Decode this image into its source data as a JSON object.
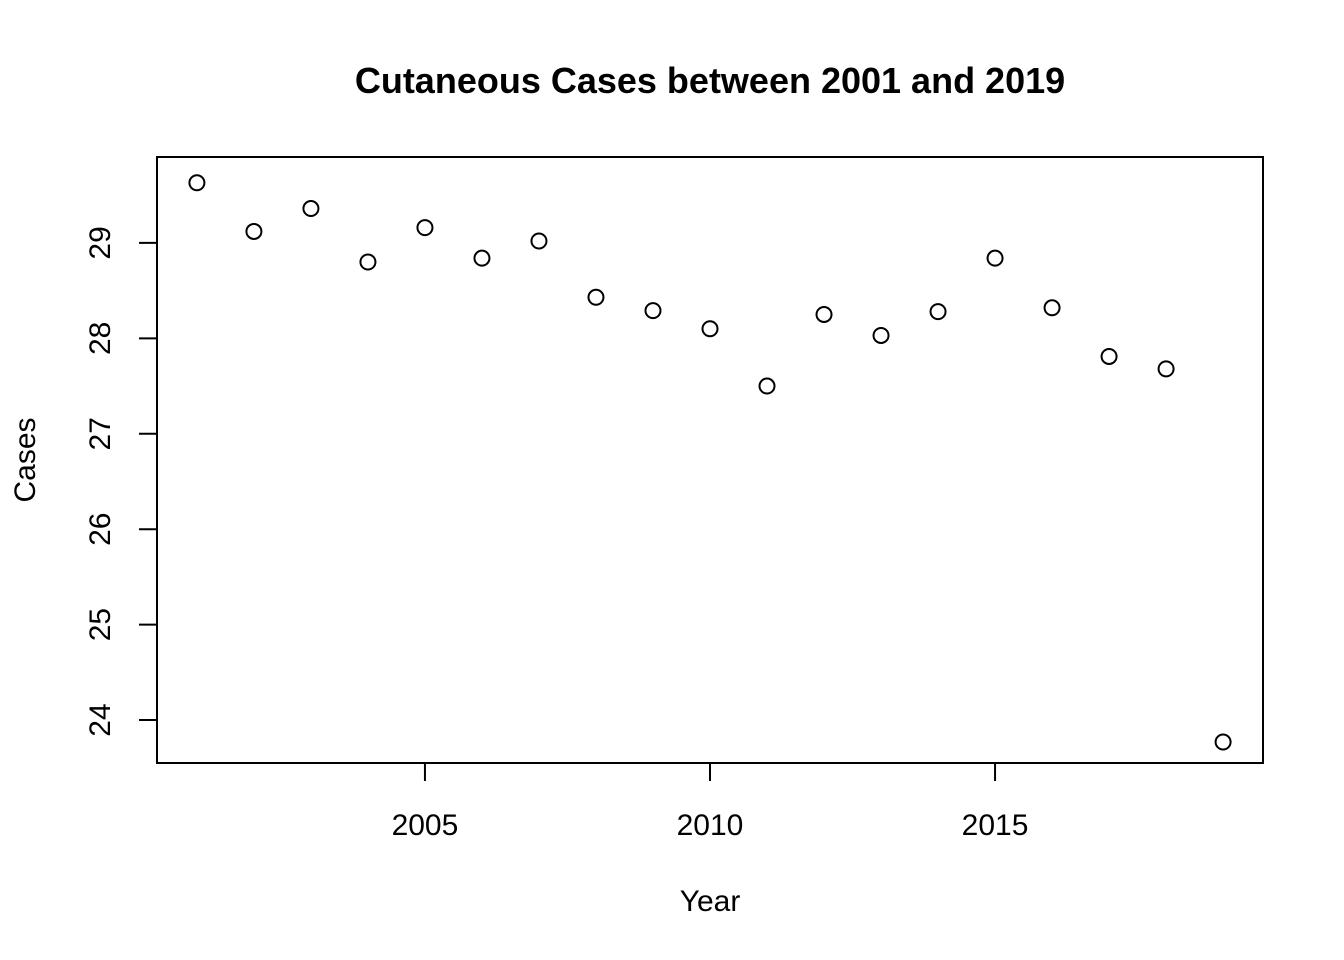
{
  "chart_data": {
    "type": "scatter",
    "title": "Cutaneous Cases between 2001 and 2019",
    "xlabel": "Year",
    "ylabel": "Cases",
    "xlim": [
      2000.3,
      2019.7
    ],
    "ylim": [
      23.55,
      29.9
    ],
    "xticks": [
      2005,
      2010,
      2015
    ],
    "yticks": [
      24,
      25,
      26,
      27,
      28,
      29
    ],
    "grid": false,
    "marker": "open-circle",
    "series": [
      {
        "x": [
          2001,
          2002,
          2003,
          2004,
          2005,
          2006,
          2007,
          2008,
          2009,
          2010,
          2011,
          2012,
          2013,
          2014,
          2015,
          2016,
          2017,
          2018,
          2019
        ],
        "y": [
          29.63,
          29.12,
          29.36,
          28.8,
          29.16,
          28.84,
          29.02,
          28.43,
          28.29,
          28.1,
          27.5,
          28.25,
          28.03,
          28.28,
          28.84,
          28.32,
          27.81,
          27.68,
          23.77
        ]
      }
    ]
  }
}
